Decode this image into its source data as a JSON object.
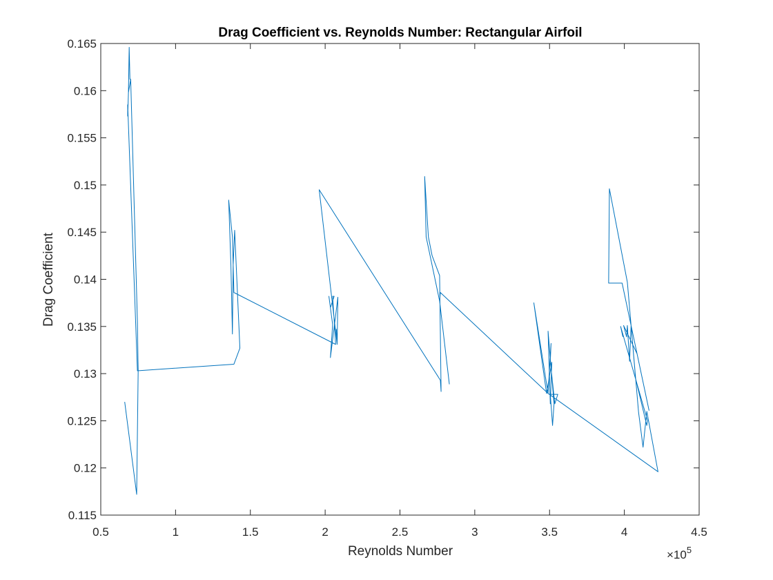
{
  "chart_data": {
    "type": "line",
    "title": "Drag Coefficient vs. Reynolds Number: Rectangular Airfoil",
    "xlabel": "Reynolds Number",
    "ylabel": "Drag Coefficient",
    "x_multiplier_text": "×10",
    "x_multiplier_exponent": "5",
    "xlim": [
      0.5,
      4.5
    ],
    "ylim": [
      0.115,
      0.165
    ],
    "x_ticks": [
      "0.5",
      "1",
      "1.5",
      "2",
      "2.5",
      "3",
      "3.5",
      "4",
      "4.5"
    ],
    "y_ticks": [
      "0.115",
      "0.12",
      "0.125",
      "0.13",
      "0.135",
      "0.14",
      "0.145",
      "0.15",
      "0.155",
      "0.16",
      "0.165"
    ],
    "grid": false,
    "series": [
      {
        "color": "#0072BD",
        "x": [
          0.66,
          0.74,
          0.75,
          0.745,
          0.7,
          0.695,
          0.69,
          0.685,
          0.7,
          0.685,
          0.68,
          0.68,
          0.745,
          1.39,
          1.43,
          1.395,
          1.385,
          1.38,
          1.37,
          1.355,
          1.38,
          1.39,
          2.07,
          2.05,
          2.06,
          2.035,
          2.025,
          2.05,
          2.035,
          2.085,
          2.08,
          2.075,
          2.08,
          1.96,
          2.77,
          2.775,
          2.765,
          2.715,
          2.69,
          2.665,
          2.675,
          2.765,
          2.83,
          2.765,
          2.77,
          3.49,
          3.395,
          3.48,
          3.515,
          3.505,
          3.49,
          3.53,
          3.52,
          3.505,
          3.555,
          3.535,
          3.505,
          3.51,
          3.49,
          4.225,
          4.15,
          4.125,
          4.095,
          4.02,
          3.9,
          3.895,
          3.895,
          3.985,
          4.165,
          4.085,
          3.995,
          4.015,
          4.02,
          4.035,
          4.045,
          4.075,
          4.15,
          4.155,
          3.975,
          3.99
        ],
        "y": [
          0.127,
          0.1172,
          0.1303,
          0.1355,
          0.1612,
          0.1612,
          0.1646,
          0.1598,
          0.1612,
          0.1598,
          0.1573,
          0.1585,
          0.1303,
          0.131,
          0.1327,
          0.1452,
          0.1415,
          0.1342,
          0.1415,
          0.1484,
          0.1445,
          0.1386,
          0.1331,
          0.1382,
          0.1382,
          0.137,
          0.1382,
          0.1352,
          0.1317,
          0.1381,
          0.1331,
          0.1347,
          0.1331,
          0.1495,
          0.1293,
          0.1281,
          0.1404,
          0.1425,
          0.1445,
          0.1509,
          0.1445,
          0.1377,
          0.1289,
          0.1377,
          0.1386,
          0.1279,
          0.1375,
          0.1279,
          0.1312,
          0.1268,
          0.1345,
          0.1268,
          0.1245,
          0.1278,
          0.1278,
          0.1268,
          0.1313,
          0.1332,
          0.1279,
          0.1196,
          0.126,
          0.1222,
          0.1259,
          0.1397,
          0.1496,
          0.1397,
          0.1396,
          0.1396,
          0.1261,
          0.1321,
          0.1351,
          0.1339,
          0.1351,
          0.1313,
          0.1351,
          0.1295,
          0.1245,
          0.125,
          0.135,
          0.1339
        ]
      }
    ]
  }
}
